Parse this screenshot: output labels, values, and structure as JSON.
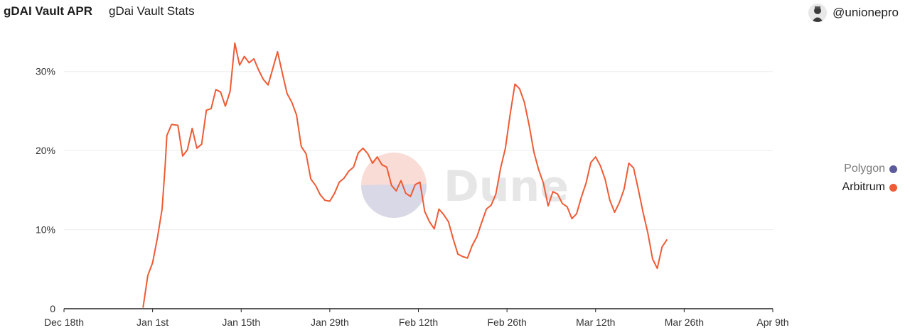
{
  "header": {
    "title": "gDAI Vault APR",
    "subtitle": "gDai Vault Stats",
    "author": "@unionepro"
  },
  "watermark": "Dune",
  "colors": {
    "polygon": "#5a5a9c",
    "arbitrum": "#ee5b35",
    "grid": "#ececec",
    "axis": "#222222",
    "tick_text": "#333333"
  },
  "chart_data": {
    "type": "line",
    "title": "gDAI Vault APR",
    "x_tick_labels": [
      "Dec 18th",
      "Jan 1st",
      "Jan 15th",
      "Jan 29th",
      "Feb 12th",
      "Feb 26th",
      "Mar 12th",
      "Mar 26th",
      "Apr 9th"
    ],
    "x_ticks": [
      "2022-12-18",
      "2023-01-01",
      "2023-01-15",
      "2023-01-29",
      "2023-02-12",
      "2023-02-26",
      "2023-03-12",
      "2023-03-26",
      "2023-04-09"
    ],
    "xlim": [
      "2022-12-18",
      "2023-04-09"
    ],
    "y_tick_labels": [
      "0",
      "10%",
      "20%",
      "30%"
    ],
    "y_ticks": [
      0,
      10,
      20,
      30
    ],
    "ylim": [
      0,
      35
    ],
    "grid": true,
    "legend": {
      "position": "right",
      "items": [
        "Polygon",
        "Arbitrum"
      ]
    },
    "series": [
      {
        "name": "Polygon",
        "color": "#5a5a9c",
        "points": []
      },
      {
        "name": "Arbitrum",
        "color": "#ee5b35",
        "points": [
          [
            "2022-12-30T12:00",
            0.2
          ],
          [
            "2022-12-31T06:00",
            4.2
          ],
          [
            "2023-01-01",
            5.8
          ],
          [
            "2023-01-01T18:00",
            8.9
          ],
          [
            "2023-01-02T12:00",
            12.6
          ],
          [
            "2023-01-03",
            18.2
          ],
          [
            "2023-01-03T06:00",
            21.9
          ],
          [
            "2023-01-04",
            23.3
          ],
          [
            "2023-01-05",
            23.2
          ],
          [
            "2023-01-05T18:00",
            19.3
          ],
          [
            "2023-01-06T12:00",
            20.1
          ],
          [
            "2023-01-07T06:00",
            22.8
          ],
          [
            "2023-01-08",
            20.3
          ],
          [
            "2023-01-08T18:00",
            20.8
          ],
          [
            "2023-01-09T12:00",
            25.1
          ],
          [
            "2023-01-10T06:00",
            25.3
          ],
          [
            "2023-01-11",
            27.7
          ],
          [
            "2023-01-11T18:00",
            27.4
          ],
          [
            "2023-01-12T12:00",
            25.6
          ],
          [
            "2023-01-13T06:00",
            27.5
          ],
          [
            "2023-01-14",
            33.6
          ],
          [
            "2023-01-14T18:00",
            30.8
          ],
          [
            "2023-01-15T12:00",
            31.9
          ],
          [
            "2023-01-16T06:00",
            31.1
          ],
          [
            "2023-01-17",
            31.6
          ],
          [
            "2023-01-17T18:00",
            30.2
          ],
          [
            "2023-01-18T12:00",
            29.0
          ],
          [
            "2023-01-19T06:00",
            28.3
          ],
          [
            "2023-01-20",
            30.4
          ],
          [
            "2023-01-20T18:00",
            32.5
          ],
          [
            "2023-01-21T12:00",
            29.8
          ],
          [
            "2023-01-22T06:00",
            27.2
          ],
          [
            "2023-01-23",
            26.1
          ],
          [
            "2023-01-23T18:00",
            24.5
          ],
          [
            "2023-01-24T12:00",
            20.5
          ],
          [
            "2023-01-25T06:00",
            19.6
          ],
          [
            "2023-01-26",
            16.4
          ],
          [
            "2023-01-26T18:00",
            15.6
          ],
          [
            "2023-01-27T12:00",
            14.4
          ],
          [
            "2023-01-28T06:00",
            13.7
          ],
          [
            "2023-01-29",
            13.6
          ],
          [
            "2023-01-29T18:00",
            14.6
          ],
          [
            "2023-01-30T12:00",
            16.0
          ],
          [
            "2023-01-31T06:00",
            16.5
          ],
          [
            "2023-02-01",
            17.4
          ],
          [
            "2023-02-01T18:00",
            17.9
          ],
          [
            "2023-02-02T12:00",
            19.7
          ],
          [
            "2023-02-03T06:00",
            20.3
          ],
          [
            "2023-02-04",
            19.6
          ],
          [
            "2023-02-04T18:00",
            18.4
          ],
          [
            "2023-02-05T12:00",
            19.2
          ],
          [
            "2023-02-06T06:00",
            18.2
          ],
          [
            "2023-02-07",
            17.9
          ],
          [
            "2023-02-07T18:00",
            15.6
          ],
          [
            "2023-02-08T12:00",
            14.9
          ],
          [
            "2023-02-09T06:00",
            16.2
          ],
          [
            "2023-02-10",
            14.6
          ],
          [
            "2023-02-10T18:00",
            14.2
          ],
          [
            "2023-02-11T12:00",
            15.7
          ],
          [
            "2023-02-12T06:00",
            16.0
          ],
          [
            "2023-02-13",
            12.3
          ],
          [
            "2023-02-13T18:00",
            11.0
          ],
          [
            "2023-02-14T12:00",
            10.1
          ],
          [
            "2023-02-15T06:00",
            12.6
          ],
          [
            "2023-02-16",
            11.9
          ],
          [
            "2023-02-16T18:00",
            11.0
          ],
          [
            "2023-02-17T12:00",
            8.8
          ],
          [
            "2023-02-18T06:00",
            6.9
          ],
          [
            "2023-02-19",
            6.6
          ],
          [
            "2023-02-19T18:00",
            6.4
          ],
          [
            "2023-02-20T12:00",
            8.0
          ],
          [
            "2023-02-21T06:00",
            9.1
          ],
          [
            "2023-02-22",
            10.9
          ],
          [
            "2023-02-22T18:00",
            12.6
          ],
          [
            "2023-02-23T12:00",
            13.1
          ],
          [
            "2023-02-24T06:00",
            14.5
          ],
          [
            "2023-02-25",
            17.8
          ],
          [
            "2023-02-25T18:00",
            20.3
          ],
          [
            "2023-02-26T12:00",
            24.6
          ],
          [
            "2023-02-27T06:00",
            28.4
          ],
          [
            "2023-02-28",
            27.8
          ],
          [
            "2023-02-28T18:00",
            26.1
          ],
          [
            "2023-03-01T12:00",
            23.2
          ],
          [
            "2023-03-02T06:00",
            19.8
          ],
          [
            "2023-03-03",
            17.6
          ],
          [
            "2023-03-03T18:00",
            15.9
          ],
          [
            "2023-03-04T12:00",
            13.0
          ],
          [
            "2023-03-05T06:00",
            14.8
          ],
          [
            "2023-03-06",
            14.5
          ],
          [
            "2023-03-06T18:00",
            13.3
          ],
          [
            "2023-03-07T12:00",
            12.9
          ],
          [
            "2023-03-08T06:00",
            11.4
          ],
          [
            "2023-03-09",
            12.0
          ],
          [
            "2023-03-09T18:00",
            14.1
          ],
          [
            "2023-03-10T12:00",
            15.9
          ],
          [
            "2023-03-11T06:00",
            18.5
          ],
          [
            "2023-03-12",
            19.2
          ],
          [
            "2023-03-12T18:00",
            18.1
          ],
          [
            "2023-03-13T12:00",
            16.4
          ],
          [
            "2023-03-14T06:00",
            13.7
          ],
          [
            "2023-03-15",
            12.2
          ],
          [
            "2023-03-15T18:00",
            13.4
          ],
          [
            "2023-03-16T12:00",
            15.1
          ],
          [
            "2023-03-17T06:00",
            18.4
          ],
          [
            "2023-03-18",
            17.8
          ],
          [
            "2023-03-18T18:00",
            15.1
          ],
          [
            "2023-03-19T12:00",
            12.2
          ],
          [
            "2023-03-20T06:00",
            9.6
          ],
          [
            "2023-03-21",
            6.3
          ],
          [
            "2023-03-21T18:00",
            5.1
          ],
          [
            "2023-03-22T12:00",
            7.8
          ],
          [
            "2023-03-23T06:00",
            8.7
          ]
        ]
      }
    ]
  }
}
